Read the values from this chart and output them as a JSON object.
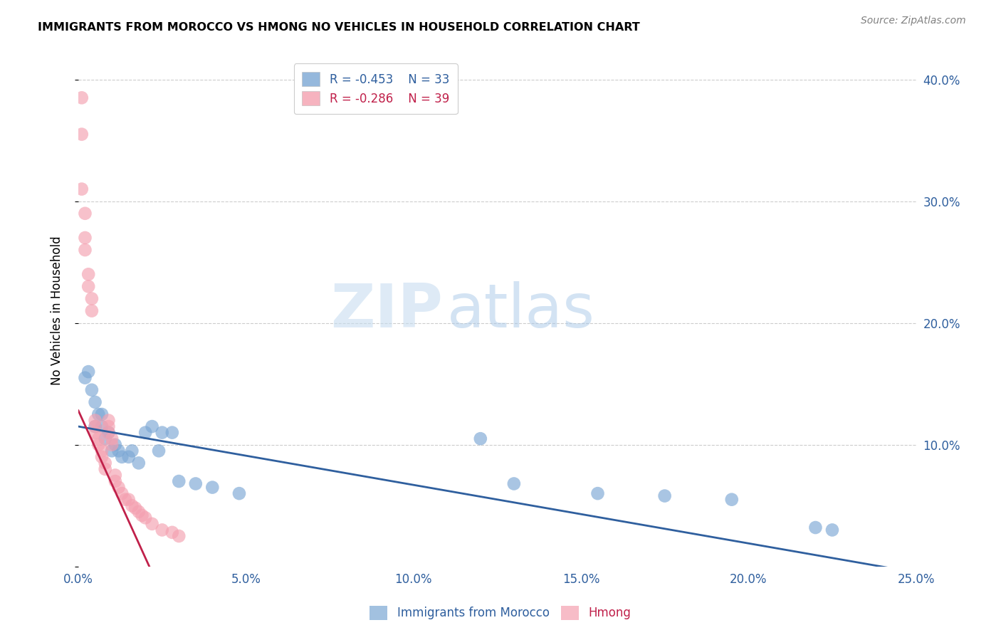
{
  "title": "IMMIGRANTS FROM MOROCCO VS HMONG NO VEHICLES IN HOUSEHOLD CORRELATION CHART",
  "source": "Source: ZipAtlas.com",
  "ylabel": "No Vehicles in Household",
  "xlim": [
    0.0,
    0.25
  ],
  "ylim": [
    0.0,
    0.42
  ],
  "xticks": [
    0.0,
    0.05,
    0.1,
    0.15,
    0.2,
    0.25
  ],
  "yticks": [
    0.0,
    0.1,
    0.2,
    0.3,
    0.4
  ],
  "xtick_labels": [
    "0.0%",
    "5.0%",
    "10.0%",
    "15.0%",
    "20.0%",
    "25.0%"
  ],
  "ytick_labels_right": [
    "",
    "10.0%",
    "20.0%",
    "30.0%",
    "40.0%"
  ],
  "legend_label1": "Immigrants from Morocco",
  "legend_label2": "Hmong",
  "R1": -0.453,
  "N1": 33,
  "R2": -0.286,
  "N2": 39,
  "color_morocco": "#7BA7D4",
  "color_hmong": "#F4A0B0",
  "line_color_morocco": "#2F5F9E",
  "line_color_hmong": "#C0204A",
  "watermark_zip": "ZIP",
  "watermark_atlas": "atlas",
  "morocco_line_x0": 0.0,
  "morocco_line_y0": 0.115,
  "morocco_line_x1": 0.25,
  "morocco_line_y1": -0.005,
  "hmong_line_x0": 0.0,
  "hmong_line_y0": 0.128,
  "hmong_line_x1": 0.022,
  "hmong_line_y1": -0.005,
  "morocco_x": [
    0.002,
    0.003,
    0.004,
    0.005,
    0.005,
    0.006,
    0.007,
    0.007,
    0.008,
    0.009,
    0.01,
    0.011,
    0.012,
    0.013,
    0.015,
    0.016,
    0.018,
    0.02,
    0.022,
    0.024,
    0.025,
    0.028,
    0.03,
    0.035,
    0.04,
    0.048,
    0.12,
    0.13,
    0.155,
    0.175,
    0.195,
    0.22,
    0.225
  ],
  "morocco_y": [
    0.155,
    0.16,
    0.145,
    0.135,
    0.115,
    0.125,
    0.125,
    0.115,
    0.105,
    0.11,
    0.095,
    0.1,
    0.095,
    0.09,
    0.09,
    0.095,
    0.085,
    0.11,
    0.115,
    0.095,
    0.11,
    0.11,
    0.07,
    0.068,
    0.065,
    0.06,
    0.105,
    0.068,
    0.06,
    0.058,
    0.055,
    0.032,
    0.03
  ],
  "hmong_x": [
    0.001,
    0.001,
    0.001,
    0.002,
    0.002,
    0.002,
    0.003,
    0.003,
    0.004,
    0.004,
    0.005,
    0.005,
    0.005,
    0.006,
    0.006,
    0.007,
    0.007,
    0.008,
    0.008,
    0.009,
    0.009,
    0.009,
    0.01,
    0.01,
    0.011,
    0.011,
    0.012,
    0.013,
    0.014,
    0.015,
    0.016,
    0.017,
    0.018,
    0.019,
    0.02,
    0.022,
    0.025,
    0.028,
    0.03
  ],
  "hmong_y": [
    0.385,
    0.355,
    0.31,
    0.29,
    0.27,
    0.26,
    0.24,
    0.23,
    0.22,
    0.21,
    0.12,
    0.115,
    0.11,
    0.105,
    0.1,
    0.095,
    0.09,
    0.085,
    0.08,
    0.12,
    0.115,
    0.11,
    0.105,
    0.1,
    0.075,
    0.07,
    0.065,
    0.06,
    0.055,
    0.055,
    0.05,
    0.048,
    0.045,
    0.042,
    0.04,
    0.035,
    0.03,
    0.028,
    0.025
  ]
}
